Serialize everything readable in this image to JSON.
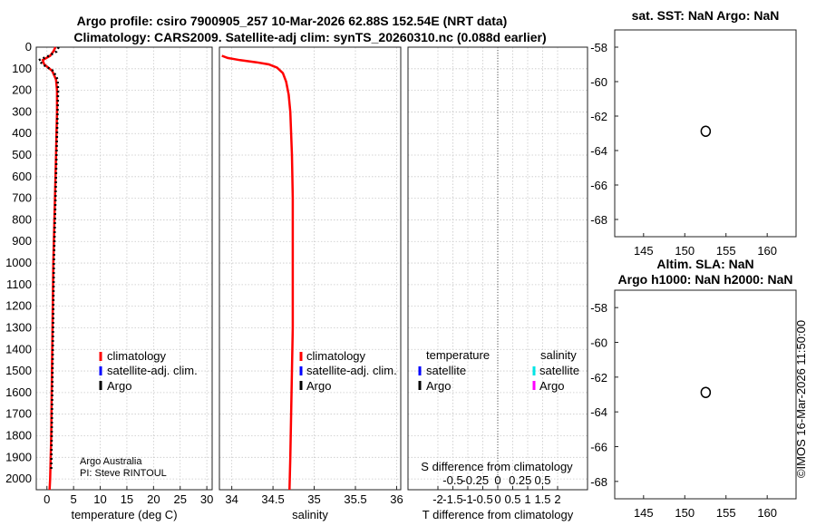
{
  "figure": {
    "title_line1": "Argo profile: csiro 7900905_257 10-Mar-2026 62.88S 152.54E (NRT data)",
    "title_line2": "Climatology: CARS2009. Satellite-adj clim: synTS_20260310.nc (0.088d earlier)",
    "credit_line1": "Argo Australia",
    "credit_line2": "PI: Steve RINTOUL",
    "timestamp": "©IMOS 16-Mar-2026 11:50:00"
  },
  "legend": {
    "climatology": "climatology",
    "satellite": "satellite-adj. clim.",
    "argo": "Argo",
    "diff_temperature": "temperature",
    "diff_salinity": "salinity",
    "diff_satellite": "satellite",
    "diff_argo": "Argo"
  },
  "colors": {
    "climatology": "#ff0000",
    "satellite": "#0000ff",
    "argo": "#000000",
    "sal_satellite": "#00e5e5",
    "sal_argo": "#ff00ff"
  },
  "chart_data": [
    {
      "type": "line",
      "panel": "temperature",
      "xlabel": "temperature (deg C)",
      "ylim": [
        2050,
        0
      ],
      "xlim": [
        -2,
        31
      ],
      "y_ticks": [
        0,
        100,
        200,
        300,
        400,
        500,
        600,
        700,
        800,
        900,
        1000,
        1100,
        1200,
        1300,
        1400,
        1500,
        1600,
        1700,
        1800,
        1900,
        2000
      ],
      "x_ticks": [
        0,
        5,
        10,
        15,
        20,
        25,
        30
      ],
      "grid": true,
      "series": [
        {
          "name": "climatology",
          "style": "solid",
          "x": [
            1.6,
            1.2,
            0.6,
            -0.8,
            -0.5,
            1.0,
            1.7,
            1.9,
            1.9,
            1.8,
            1.7,
            1.6,
            1.5,
            1.4,
            1.3,
            1.2,
            1.1,
            1.0,
            0.9,
            0.8,
            0.7,
            0.6,
            0.5
          ],
          "y": [
            0,
            20,
            40,
            60,
            80,
            110,
            150,
            200,
            300,
            400,
            500,
            600,
            700,
            800,
            900,
            1000,
            1200,
            1400,
            1600,
            1800,
            1900,
            2000,
            2050
          ]
        },
        {
          "name": "Argo",
          "style": "dotted",
          "x": [
            2.2,
            1.8,
            0.4,
            -1.5,
            -0.8,
            1.2,
            2.0,
            2.1,
            2.0,
            1.9,
            1.8,
            1.7,
            1.6,
            1.5,
            1.4,
            1.3,
            1.2,
            1.1,
            1.0,
            0.9,
            0.8
          ],
          "y": [
            0,
            20,
            40,
            60,
            80,
            110,
            150,
            200,
            300,
            400,
            500,
            600,
            700,
            800,
            900,
            1000,
            1200,
            1400,
            1600,
            1800,
            1960
          ]
        }
      ]
    },
    {
      "type": "line",
      "panel": "salinity",
      "xlabel": "salinity",
      "ylim": [
        2050,
        0
      ],
      "xlim": [
        33.85,
        36.05
      ],
      "x_ticks": [
        34,
        34.5,
        35,
        35.5,
        36
      ],
      "grid": true,
      "series": [
        {
          "name": "climatology",
          "style": "solid",
          "x": [
            33.88,
            33.95,
            34.1,
            34.3,
            34.45,
            34.55,
            34.62,
            34.66,
            34.69,
            34.71,
            34.72,
            34.73,
            34.74,
            34.74,
            34.74,
            34.74,
            34.73,
            34.72,
            34.71,
            34.7
          ],
          "y": [
            40,
            50,
            60,
            70,
            80,
            95,
            120,
            160,
            220,
            300,
            400,
            500,
            700,
            900,
            1100,
            1300,
            1500,
            1700,
            1900,
            2050
          ]
        }
      ]
    },
    {
      "type": "line",
      "panel": "difference",
      "xlabel": "T difference from climatology",
      "top_label": "S difference from climatology",
      "ylim": [
        2050,
        0
      ],
      "xlim": [
        -3,
        3
      ],
      "x_ticks": [
        -2,
        -1.5,
        -1,
        -0.5,
        0,
        0.5,
        1,
        1.5,
        2
      ],
      "x_tick_labels": [
        "-2",
        "-1.5",
        "-1",
        "-0.5",
        "0",
        "0.5",
        "1",
        "1.5",
        "2"
      ],
      "s_tick_values": [
        -1.5,
        -0.75,
        0,
        0.75,
        1.5
      ],
      "s_tick_labels": [
        "-0.5",
        "-0.25",
        "0",
        "0.25",
        "0.5"
      ],
      "zero_line": true,
      "grid": true,
      "series": []
    },
    {
      "type": "scatter",
      "panel": "map_sst",
      "title": "sat. SST: NaN Argo: NaN",
      "xlim": [
        141.5,
        163.5
      ],
      "ylim": [
        -69,
        -57
      ],
      "x_ticks": [
        145,
        150,
        155,
        160
      ],
      "y_ticks": [
        -58,
        -60,
        -62,
        -64,
        -66,
        -68
      ],
      "points": [
        {
          "x": 152.54,
          "y": -62.88
        }
      ]
    },
    {
      "type": "scatter",
      "panel": "map_sla",
      "title_line1": "Altim. SLA: NaN",
      "title_line2": "Argo h1000: NaN h2000: NaN",
      "xlim": [
        141.5,
        163.5
      ],
      "ylim": [
        -69,
        -57
      ],
      "x_ticks": [
        145,
        150,
        155,
        160
      ],
      "y_ticks": [
        -58,
        -60,
        -62,
        -64,
        -66,
        -68
      ],
      "points": [
        {
          "x": 152.54,
          "y": -62.88
        }
      ]
    }
  ]
}
